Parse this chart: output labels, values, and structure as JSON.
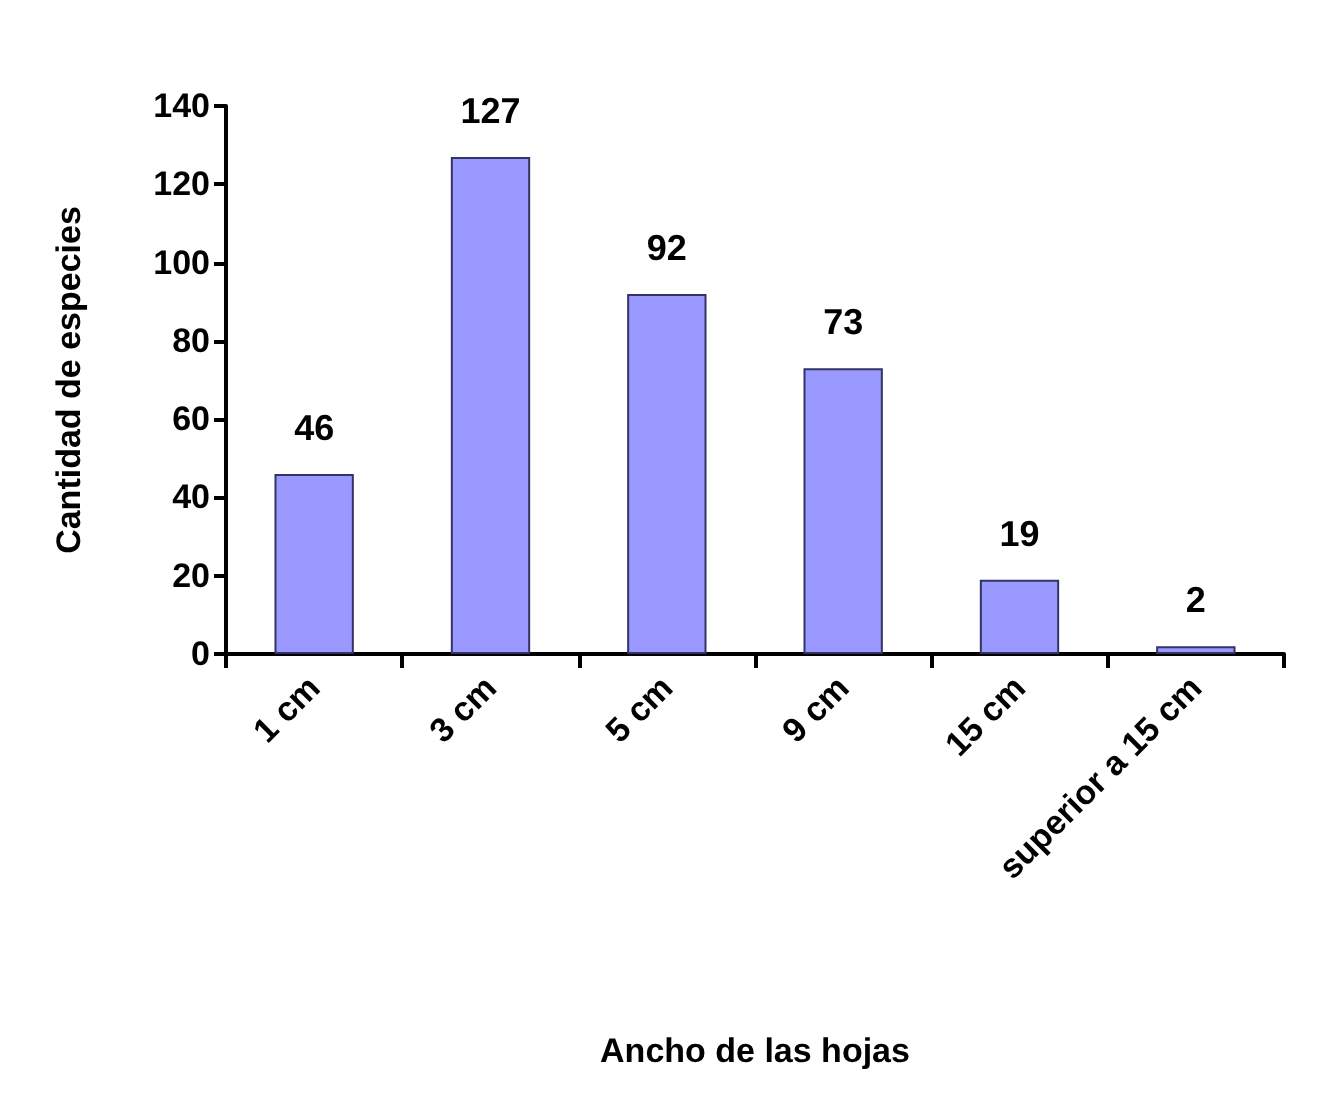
{
  "chart_data": {
    "type": "bar",
    "xlabel": "Ancho de las hojas",
    "ylabel": "Cantidad de especies",
    "categories": [
      "1 cm",
      "3 cm",
      "5 cm",
      "9 cm",
      "15 cm",
      "superior a 15 cm"
    ],
    "values": [
      46,
      127,
      92,
      73,
      19,
      2
    ],
    "color": "#9999ff",
    "data_labels": true,
    "ylim": [
      0,
      140
    ],
    "yticks": [
      0,
      20,
      40,
      60,
      80,
      100,
      120,
      140
    ],
    "grid": false
  }
}
